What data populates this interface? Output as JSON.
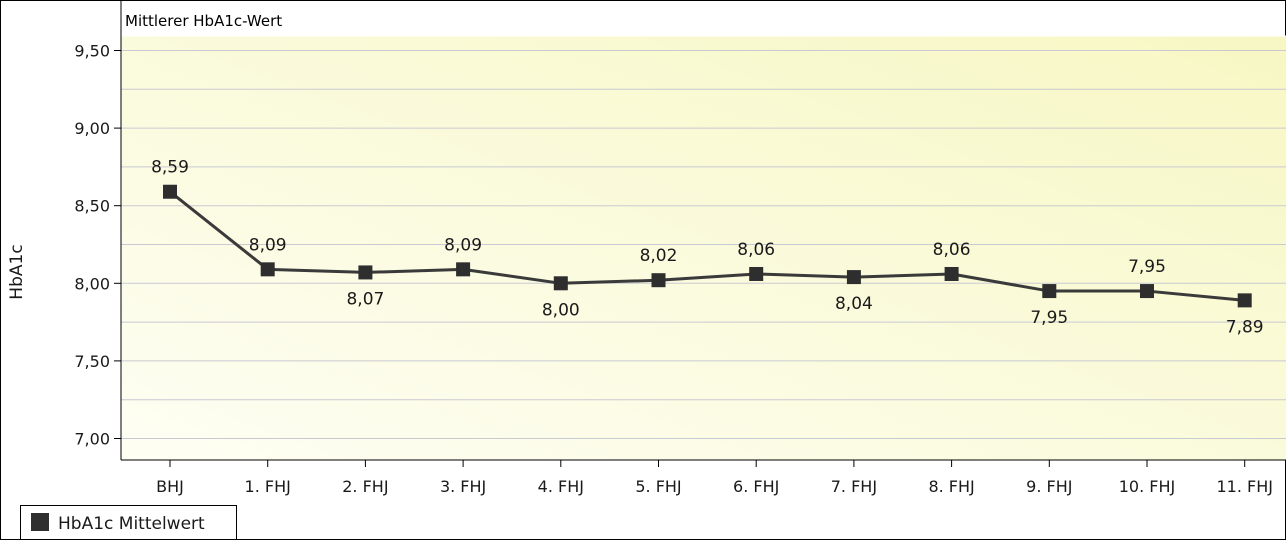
{
  "chart_data": {
    "type": "line",
    "title": "Mittlerer HbA1c-Wert",
    "xlabel": "",
    "ylabel": "HbA1c",
    "categories": [
      "BHJ",
      "1. FHJ",
      "2. FHJ",
      "3. FHJ",
      "4. FHJ",
      "5. FHJ",
      "6. FHJ",
      "7. FHJ",
      "8. FHJ",
      "9. FHJ",
      "10. FHJ",
      "11. FHJ"
    ],
    "series": [
      {
        "name": "HbA1c Mittelwert",
        "values": [
          8.59,
          8.09,
          8.07,
          8.09,
          8.0,
          8.02,
          8.06,
          8.04,
          8.06,
          7.95,
          7.95,
          7.89
        ],
        "labels": [
          "8,59",
          "8,09",
          "8,07",
          "8,09",
          "8,00",
          "8,02",
          "8,06",
          "8,04",
          "8,06",
          "7,95",
          "7,95",
          "7,89"
        ]
      }
    ],
    "ylim": [
      6.9,
      9.6
    ],
    "yticks": [
      7.0,
      7.5,
      8.0,
      8.5,
      9.0,
      9.5
    ],
    "ytick_labels": [
      "7,00",
      "7,50",
      "8,00",
      "8,50",
      "9,00",
      "9,50"
    ],
    "grid": true,
    "legend_position": "bottom-left",
    "colors": {
      "line": "#3a3a3a",
      "marker": "#2e2e2e",
      "grid": "#c9c9d2",
      "plot_bg_light": "#fefef4",
      "plot_bg_yellow": "#f7f7c4",
      "frame": "#000000"
    }
  }
}
